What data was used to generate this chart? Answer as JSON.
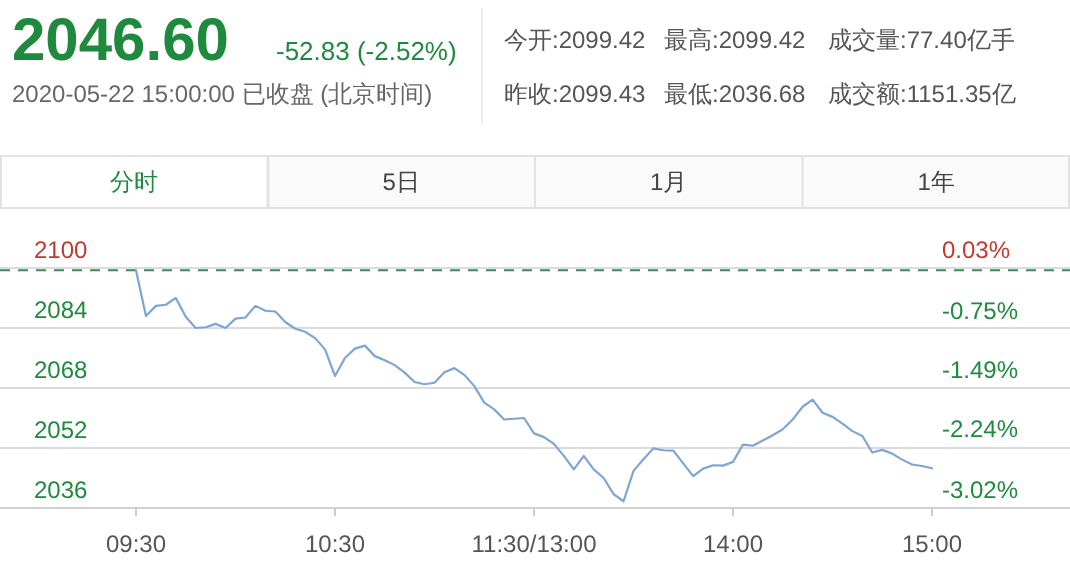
{
  "chart_data": [
    {
      "type": "other",
      "annotations": [
        "2046.60",
        "-52.83 (-2.52%)",
        "2020-05-22 15:00:00 已收盘 (北京时间)",
        "今开:2099.42",
        "最高:2099.42",
        "成交量:77.40亿手",
        "昨收:2099.43",
        "最低:2036.68",
        "成交额:1151.35亿",
        "分时",
        "5日",
        "1月",
        "1年"
      ]
    },
    {
      "type": "line",
      "categories": [
        "09:30",
        null,
        null,
        null,
        null,
        null,
        null,
        null,
        null,
        null,
        null,
        null,
        null,
        null,
        null,
        null,
        null,
        null,
        null,
        null,
        "10:30",
        null,
        null,
        null,
        null,
        null,
        null,
        null,
        null,
        null,
        null,
        null,
        null,
        null,
        null,
        null,
        null,
        null,
        null,
        null,
        "11:30/13:00",
        null,
        null,
        null,
        null,
        null,
        null,
        null,
        null,
        null,
        null,
        null,
        null,
        null,
        null,
        null,
        null,
        null,
        null,
        null,
        "14:00",
        null,
        null,
        null,
        null,
        null,
        null,
        null,
        null,
        null,
        null,
        null,
        null,
        null,
        null,
        null,
        null,
        null,
        null,
        null,
        "15:00"
      ],
      "series": [
        {
          "color": "#7fa5d3",
          "values": [
            2099.4,
            2087.2,
            2089.9,
            2090.2,
            2092,
            2087,
            2084,
            2084.2,
            2085.1,
            2084,
            2086.5,
            2086.8,
            2089.9,
            2088.6,
            2088.4,
            2085.6,
            2083.8,
            2083,
            2081.3,
            2078.3,
            2071.2,
            2076,
            2078.5,
            2079.3,
            2076.5,
            2075.4,
            2074.1,
            2072.1,
            2069.6,
            2069,
            2069.4,
            2072.2,
            2073.3,
            2071.5,
            2068.5,
            2064.1,
            2062.3,
            2059.6,
            2059.8,
            2060,
            2055.9,
            2054.9,
            2053.1,
            2049.9,
            2046.3,
            2049.9,
            2046.3,
            2044,
            2039.7,
            2037.8,
            2045.9,
            2049,
            2051.9,
            2051.4,
            2051.3,
            2047.9,
            2044.5,
            2046.5,
            2047.4,
            2047.3,
            2048.3,
            2052.9,
            2052.6,
            2054,
            2055.4,
            2057,
            2059.6,
            2063,
            2064.9,
            2061.4,
            2060.3,
            2058.5,
            2056.5,
            2055.2,
            2050.8,
            2051.5,
            2050.5,
            2048.9,
            2047.6,
            2047.2,
            2046.6
          ]
        }
      ],
      "ylim": [
        2036,
        2100
      ],
      "yticks": [
        2036,
        2052,
        2068,
        2084,
        2100
      ],
      "y2lim": [
        -3.02,
        0.03
      ],
      "y2ticks": [
        {
          "value": -3.02,
          "label": "-3.02%"
        },
        {
          "value": -2.24,
          "label": "-2.24%"
        },
        {
          "value": -1.49,
          "label": "-1.49%"
        },
        {
          "value": -0.75,
          "label": "-0.75%"
        },
        {
          "value": 0.03,
          "label": "0.03%"
        }
      ],
      "ref_lines": [
        {
          "axis": "y",
          "value": 2099.43,
          "color": "#3c8a55",
          "line_style": "dashed"
        }
      ],
      "grid": "y",
      "marker": "none",
      "line_style": "solid"
    }
  ]
}
